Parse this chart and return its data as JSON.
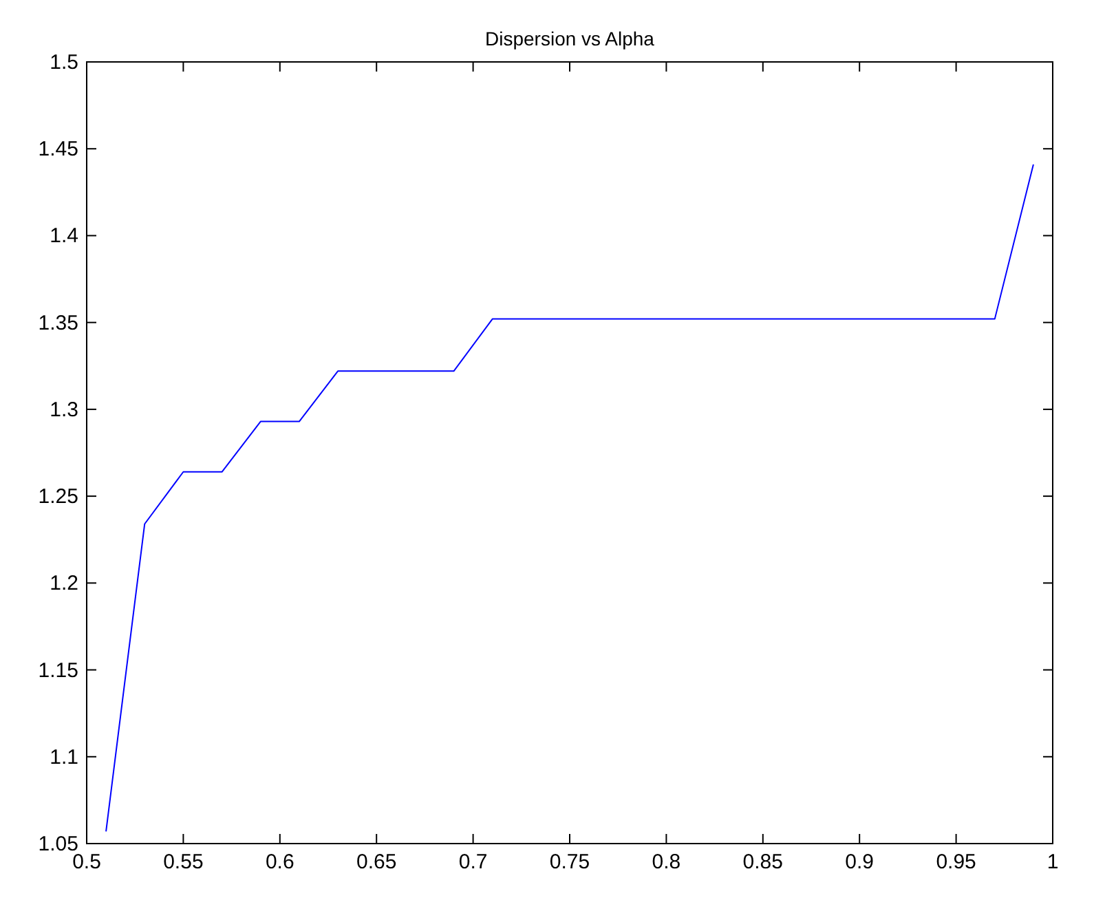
{
  "chart_data": {
    "type": "line",
    "title": "Dispersion vs Alpha",
    "x": [
      0.51,
      0.53,
      0.55,
      0.57,
      0.59,
      0.61,
      0.63,
      0.65,
      0.67,
      0.69,
      0.71,
      0.73,
      0.75,
      0.77,
      0.79,
      0.81,
      0.83,
      0.85,
      0.87,
      0.89,
      0.91,
      0.93,
      0.95,
      0.97,
      0.99
    ],
    "series": [
      {
        "color": "#0000ff",
        "values": [
          1.057,
          1.234,
          1.264,
          1.264,
          1.293,
          1.293,
          1.322,
          1.322,
          1.322,
          1.322,
          1.352,
          1.352,
          1.352,
          1.352,
          1.352,
          1.352,
          1.352,
          1.352,
          1.352,
          1.352,
          1.352,
          1.352,
          1.352,
          1.352,
          1.441
        ]
      }
    ],
    "xlim": [
      0.5,
      1
    ],
    "xticks": [
      0.5,
      0.55,
      0.6,
      0.65,
      0.7,
      0.75,
      0.8,
      0.85,
      0.9,
      0.95,
      1
    ],
    "ylim": [
      1.05,
      1.5
    ],
    "yticks": [
      1.05,
      1.1,
      1.15,
      1.2,
      1.25,
      1.3,
      1.35,
      1.4,
      1.45,
      1.5
    ],
    "grid": false,
    "marker": "none",
    "line_style": "solid"
  }
}
